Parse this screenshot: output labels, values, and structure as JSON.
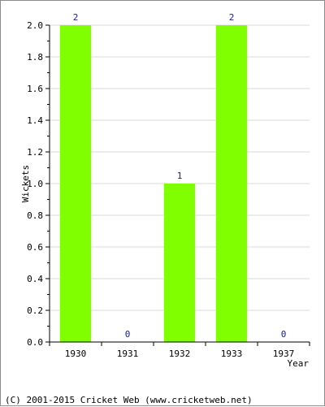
{
  "chart_data": {
    "type": "bar",
    "categories": [
      "1930",
      "1931",
      "1932",
      "1933",
      "1937"
    ],
    "values": [
      2,
      0,
      1,
      2,
      0
    ],
    "data_labels": [
      "2",
      "0",
      "1",
      "2",
      "0"
    ],
    "xlabel": "Year",
    "ylabel": "Wickets",
    "ylim": [
      0,
      2.0
    ],
    "yticks": [
      0.0,
      0.2,
      0.4,
      0.6,
      0.8,
      1.0,
      1.2,
      1.4,
      1.6,
      1.8,
      2.0
    ],
    "ytick_labels": [
      "0.0",
      "0.2",
      "0.4",
      "0.6",
      "0.8",
      "1.0",
      "1.2",
      "1.4",
      "1.6",
      "1.8",
      "2.0"
    ],
    "grid": true,
    "bar_color": "#80ff00",
    "label_color": "#1a1a8c"
  },
  "footer": {
    "copyright": "(C) 2001-2015 Cricket Web (www.cricketweb.net)"
  }
}
